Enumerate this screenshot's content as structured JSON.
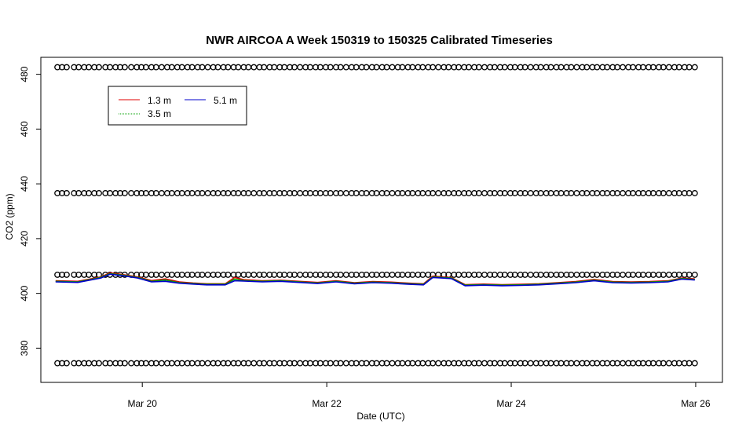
{
  "chart_data": {
    "type": "line",
    "title": "NWR AIRCOA A  Week 150319 to 150325  Calibrated Timeseries",
    "xlabel": "Date (UTC)",
    "ylabel": "CO2 (ppm)",
    "x_ticks": [
      "Mar 20",
      "Mar 22",
      "Mar 24",
      "Mar 26"
    ],
    "x_tick_days": [
      20,
      22,
      24,
      26
    ],
    "y_ticks": [
      380,
      400,
      420,
      440,
      460,
      480
    ],
    "xlim_days": [
      18.9,
      26.29
    ],
    "ylim": [
      367.5,
      486.2
    ],
    "legend": {
      "placement": "top-left",
      "entries": [
        {
          "label": "1.3 m",
          "color": "#e00000"
        },
        {
          "label": "5.1 m",
          "color": "#0000cc"
        },
        {
          "label": "3.5 m",
          "color": "#00a000"
        }
      ]
    },
    "calibration_levels": [
      374.5,
      406.8,
      436.6,
      482.6
    ],
    "calibration_x_days": [
      19.08,
      19.13,
      19.18,
      19.26,
      19.31,
      19.37,
      19.42,
      19.48,
      19.53,
      19.6,
      19.65,
      19.71,
      19.76,
      19.81,
      19.88,
      19.94,
      19.99,
      20.04,
      20.1,
      20.15,
      20.21,
      20.27,
      20.32,
      20.38,
      20.43,
      20.49,
      20.54,
      20.6,
      20.65,
      20.71,
      20.77,
      20.82,
      20.88,
      20.93,
      20.99,
      21.04,
      21.1,
      21.15,
      21.21,
      21.27,
      21.32,
      21.38,
      21.43,
      21.49,
      21.54,
      21.6,
      21.65,
      21.71,
      21.77,
      21.82,
      21.88,
      21.93,
      21.99,
      22.04,
      22.1,
      22.15,
      22.21,
      22.27,
      22.32,
      22.38,
      22.43,
      22.49,
      22.54,
      22.6,
      22.65,
      22.71,
      22.77,
      22.82,
      22.88,
      22.93,
      22.99,
      23.04,
      23.1,
      23.15,
      23.21,
      23.27,
      23.32,
      23.38,
      23.43,
      23.49,
      23.54,
      23.6,
      23.65,
      23.71,
      23.77,
      23.82,
      23.88,
      23.93,
      23.99,
      24.04,
      24.1,
      24.15,
      24.21,
      24.27,
      24.32,
      24.38,
      24.43,
      24.49,
      24.54,
      24.6,
      24.65,
      24.71,
      24.77,
      24.82,
      24.88,
      24.93,
      24.99,
      25.04,
      25.1,
      25.15,
      25.21,
      25.27,
      25.32,
      25.38,
      25.43,
      25.49,
      25.54,
      25.6,
      25.65,
      25.71,
      25.77,
      25.82,
      25.88,
      25.93,
      25.99
    ],
    "series": [
      {
        "name": "1.3 m",
        "color": "#e00000",
        "x": [
          19.06,
          19.3,
          19.55,
          19.65,
          19.8,
          19.95,
          20.1,
          20.25,
          20.4,
          20.55,
          20.7,
          20.9,
          21.0,
          21.1,
          21.3,
          21.5,
          21.7,
          21.9,
          22.1,
          22.3,
          22.5,
          22.7,
          22.9,
          23.05,
          23.15,
          23.25,
          23.35,
          23.5,
          23.7,
          23.9,
          24.1,
          24.3,
          24.5,
          24.7,
          24.9,
          25.1,
          25.3,
          25.5,
          25.7,
          25.85,
          25.99
        ],
        "y": [
          404.6,
          404.4,
          406.0,
          407.5,
          406.8,
          406.0,
          404.7,
          405.3,
          404.2,
          403.8,
          403.5,
          403.5,
          405.8,
          405.0,
          404.6,
          404.8,
          404.4,
          404.0,
          404.6,
          403.9,
          404.3,
          404.1,
          403.7,
          403.5,
          406.3,
          406.0,
          405.8,
          403.2,
          403.4,
          403.2,
          403.3,
          403.5,
          403.9,
          404.3,
          405.1,
          404.3,
          404.2,
          404.3,
          404.6,
          405.6,
          405.3
        ]
      },
      {
        "name": "3.5 m",
        "color": "#00a000",
        "x": [
          19.06,
          19.3,
          19.55,
          19.65,
          19.8,
          19.95,
          20.1,
          20.25,
          20.4,
          20.55,
          20.7,
          20.9,
          21.0,
          21.1,
          21.3,
          21.5,
          21.7,
          21.9,
          22.1,
          22.3,
          22.5,
          22.7,
          22.9,
          23.05,
          23.15,
          23.25,
          23.35,
          23.5,
          23.7,
          23.9,
          24.1,
          24.3,
          24.5,
          24.7,
          24.9,
          25.1,
          25.3,
          25.5,
          25.7,
          25.85,
          25.99
        ],
        "y": [
          404.4,
          404.2,
          405.8,
          407.2,
          406.6,
          405.8,
          404.4,
          404.9,
          403.9,
          403.6,
          403.3,
          403.3,
          405.2,
          404.7,
          404.4,
          404.6,
          404.2,
          403.8,
          404.4,
          403.7,
          404.1,
          403.9,
          403.5,
          403.3,
          406.0,
          405.8,
          405.6,
          403.0,
          403.2,
          403.0,
          403.1,
          403.3,
          403.7,
          404.1,
          404.8,
          404.1,
          404.0,
          404.1,
          404.4,
          405.4,
          405.1
        ]
      },
      {
        "name": "5.1 m",
        "color": "#0000cc",
        "x": [
          19.06,
          19.3,
          19.55,
          19.65,
          19.8,
          19.95,
          20.1,
          20.25,
          20.4,
          20.55,
          20.7,
          20.9,
          21.0,
          21.1,
          21.3,
          21.5,
          21.7,
          21.9,
          22.1,
          22.3,
          22.5,
          22.7,
          22.9,
          23.05,
          23.15,
          23.25,
          23.35,
          23.5,
          23.7,
          23.9,
          24.1,
          24.3,
          24.5,
          24.7,
          24.9,
          25.1,
          25.3,
          25.5,
          25.7,
          25.85,
          25.99
        ],
        "y": [
          404.2,
          404.0,
          405.6,
          407.0,
          406.4,
          405.6,
          404.2,
          404.4,
          403.7,
          403.4,
          403.1,
          403.1,
          404.6,
          404.5,
          404.2,
          404.4,
          404.0,
          403.6,
          404.2,
          403.5,
          403.9,
          403.7,
          403.3,
          403.1,
          405.8,
          405.6,
          405.4,
          402.8,
          403.0,
          402.8,
          402.9,
          403.1,
          403.5,
          403.9,
          404.6,
          403.9,
          403.8,
          403.9,
          404.2,
          405.2,
          404.9
        ]
      }
    ]
  }
}
